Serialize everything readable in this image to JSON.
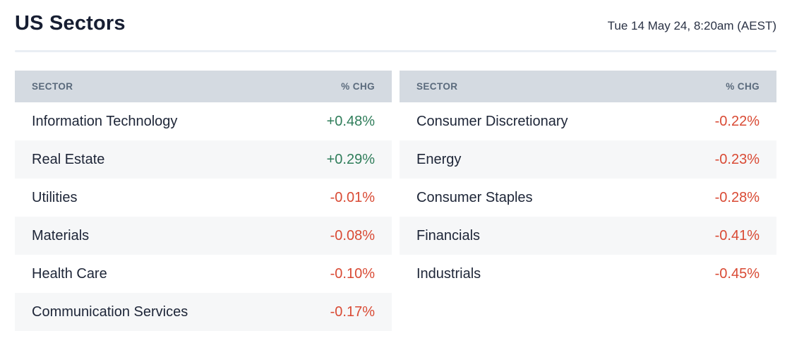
{
  "header": {
    "title": "US Sectors",
    "timestamp": "Tue 14 May 24, 8:20am (AEST)"
  },
  "columns": {
    "sector": "SECTOR",
    "change": "% CHG"
  },
  "colors": {
    "title_color": "#171e32",
    "date_color": "#2a3245",
    "divider_color": "#e9eef4",
    "header_bg": "#d4dae1",
    "header_text": "#5a6a7c",
    "alt_row_bg": "#f6f7f8",
    "body_text": "#1d2537",
    "positive_color": "#2f7d5a",
    "negative_color": "#d94a34"
  },
  "tables": [
    {
      "rows": [
        {
          "sector": "Information Technology",
          "change": "+0.48%"
        },
        {
          "sector": "Real Estate",
          "change": "+0.29%"
        },
        {
          "sector": "Utilities",
          "change": "-0.01%"
        },
        {
          "sector": "Materials",
          "change": "-0.08%"
        },
        {
          "sector": "Health Care",
          "change": "-0.10%"
        },
        {
          "sector": "Communication Services",
          "change": "-0.17%"
        }
      ]
    },
    {
      "rows": [
        {
          "sector": "Consumer Discretionary",
          "change": "-0.22%"
        },
        {
          "sector": "Energy",
          "change": "-0.23%"
        },
        {
          "sector": "Consumer Staples",
          "change": "-0.28%"
        },
        {
          "sector": "Financials",
          "change": "-0.41%"
        },
        {
          "sector": "Industrials",
          "change": "-0.45%"
        }
      ]
    }
  ]
}
